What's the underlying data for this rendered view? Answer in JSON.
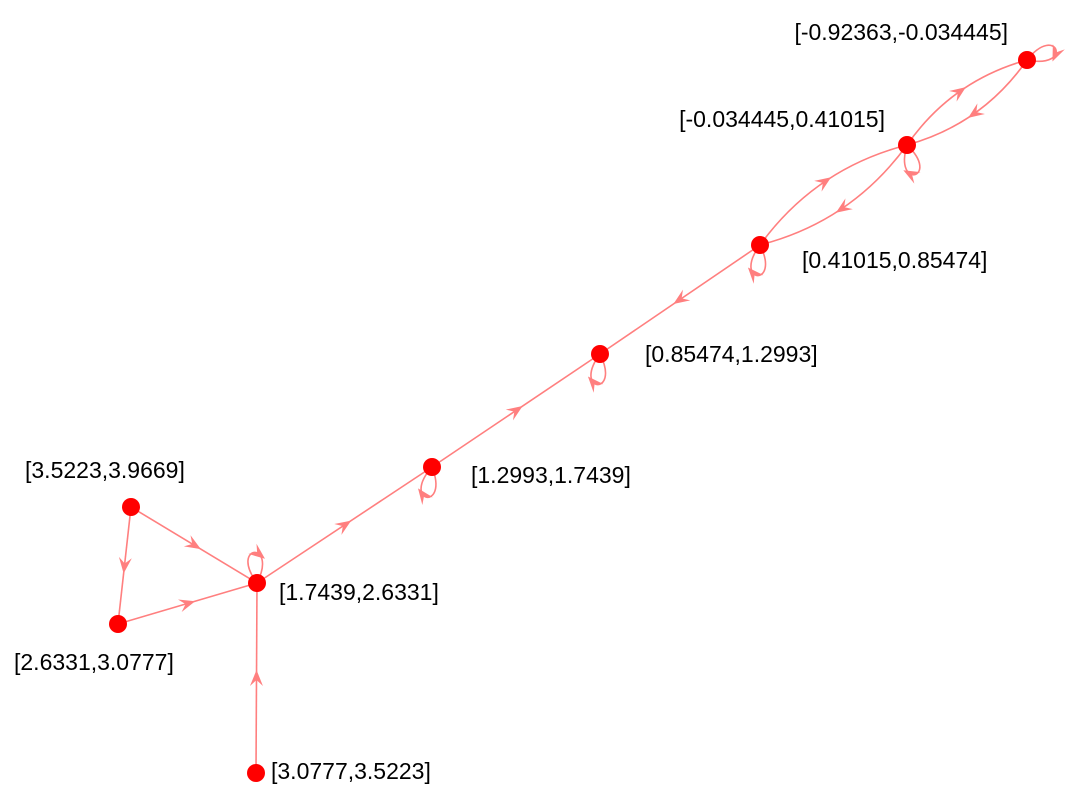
{
  "graph": {
    "edge_color": "#ff7f7f",
    "node_color": "#ff0000",
    "nodes": [
      {
        "id": "n1",
        "label": "[-0.92363,-0.034445]"
      },
      {
        "id": "n2",
        "label": "[-0.034445,0.41015]"
      },
      {
        "id": "n3",
        "label": "[0.41015,0.85474]"
      },
      {
        "id": "n4",
        "label": "[0.85474,1.2993]"
      },
      {
        "id": "n5",
        "label": "[1.2993,1.7439]"
      },
      {
        "id": "n6",
        "label": "[1.7439,2.6331]"
      },
      {
        "id": "n7",
        "label": "[2.6331,3.0777]"
      },
      {
        "id": "n8",
        "label": "[3.0777,3.5223]"
      },
      {
        "id": "n9",
        "label": "[3.5223,3.9669]"
      }
    ],
    "edges": [
      {
        "from": "n1",
        "to": "n1"
      },
      {
        "from": "n1",
        "to": "n2"
      },
      {
        "from": "n2",
        "to": "n1"
      },
      {
        "from": "n2",
        "to": "n2"
      },
      {
        "from": "n2",
        "to": "n3"
      },
      {
        "from": "n3",
        "to": "n2"
      },
      {
        "from": "n3",
        "to": "n3"
      },
      {
        "from": "n3",
        "to": "n4"
      },
      {
        "from": "n4",
        "to": "n4"
      },
      {
        "from": "n5",
        "to": "n4"
      },
      {
        "from": "n5",
        "to": "n5"
      },
      {
        "from": "n6",
        "to": "n5"
      },
      {
        "from": "n6",
        "to": "n6"
      },
      {
        "from": "n9",
        "to": "n6"
      },
      {
        "from": "n9",
        "to": "n7"
      },
      {
        "from": "n7",
        "to": "n6"
      },
      {
        "from": "n8",
        "to": "n6"
      }
    ]
  }
}
